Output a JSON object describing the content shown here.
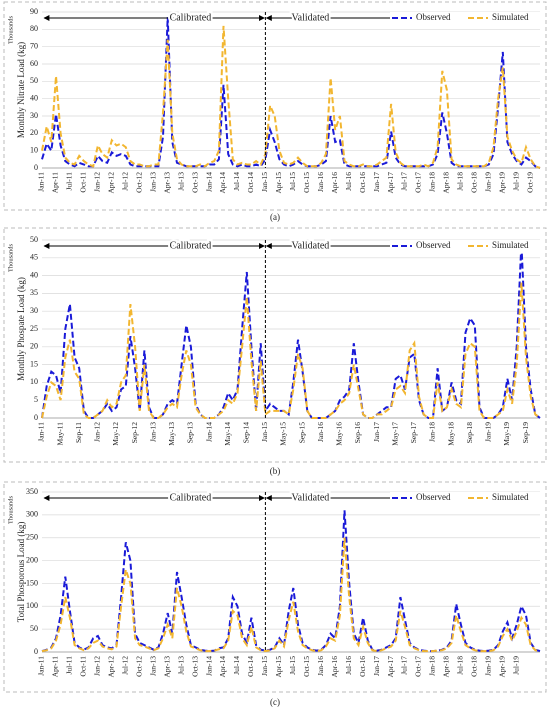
{
  "chart_data": [
    {
      "type": "line",
      "caption": "(a)",
      "y_label": "Monthly  Nitrate Load (kg)",
      "y_unit": "Thousands",
      "annotations": [
        "Calibrated",
        "Validated"
      ],
      "divider": "Jan-15",
      "grid": true,
      "legend": "top-right",
      "ylim": [
        0,
        90
      ],
      "yticks": [
        0,
        10,
        20,
        30,
        40,
        50,
        60,
        70,
        80,
        90
      ],
      "categories": [
        "Jan-11",
        null,
        null,
        "Apr-11",
        null,
        null,
        "Jul-11",
        null,
        null,
        "Oct-11",
        null,
        null,
        "Jan-12",
        null,
        null,
        "Apr-12",
        null,
        null,
        "Jul-12",
        null,
        null,
        "Oct-12",
        null,
        null,
        "Jan-13",
        null,
        null,
        "Apr-13",
        null,
        null,
        "Jul-13",
        null,
        null,
        "Oct-13",
        null,
        null,
        "Jan-14",
        null,
        null,
        "Apr-14",
        null,
        null,
        "Jul-14",
        null,
        null,
        "Oct-14",
        null,
        null,
        "Jan-15",
        null,
        null,
        "Apr-15",
        null,
        null,
        "Jul-15",
        null,
        null,
        "Oct-15",
        null,
        null,
        "Jan-16",
        null,
        null,
        "Apr-16",
        null,
        null,
        "Jul-16",
        null,
        null,
        "Oct-16",
        null,
        null,
        "Jan-17",
        null,
        null,
        "Apr-17",
        null,
        null,
        "Jul-17",
        null,
        null,
        "Oct-17",
        null,
        null,
        "Jan-18",
        null,
        null,
        "Apr-18",
        null,
        null,
        "Jul-18",
        null,
        null,
        "Oct-18",
        null,
        null,
        "Jan-19",
        null,
        null,
        "Apr-19",
        null,
        null,
        "Jul-19",
        null,
        null,
        "Oct-19",
        null,
        null
      ],
      "series": [
        {
          "name": "Observed",
          "color": "#1a1ad8",
          "values": [
            5,
            14,
            10,
            31,
            13,
            4,
            2,
            1,
            3,
            2,
            1,
            1,
            7,
            4,
            3,
            9,
            7,
            8,
            7,
            2,
            1,
            1,
            1,
            1,
            1,
            1,
            18,
            87,
            15,
            3,
            2,
            1,
            1,
            1,
            1,
            1,
            2,
            2,
            5,
            48,
            8,
            2,
            1,
            2,
            1,
            1,
            2,
            1,
            5,
            22,
            15,
            5,
            2,
            1,
            2,
            4,
            2,
            1,
            1,
            1,
            2,
            4,
            30,
            15,
            16,
            2,
            1,
            1,
            1,
            1,
            1,
            1,
            1,
            2,
            3,
            21,
            6,
            2,
            1,
            1,
            1,
            1,
            1,
            1,
            2,
            8,
            32,
            20,
            3,
            1,
            1,
            1,
            1,
            1,
            1,
            1,
            2,
            8,
            35,
            67,
            15,
            8,
            4,
            2,
            6,
            4,
            1,
            0
          ]
        },
        {
          "name": "Simulated",
          "color": "#f2b630",
          "values": [
            10,
            24,
            15,
            53,
            20,
            6,
            3,
            2,
            7,
            4,
            2,
            1,
            13,
            8,
            6,
            16,
            13,
            14,
            12,
            4,
            2,
            2,
            1,
            1,
            2,
            2,
            32,
            74,
            20,
            5,
            2,
            1,
            1,
            1,
            2,
            1,
            3,
            4,
            10,
            82,
            40,
            5,
            2,
            3,
            2,
            2,
            4,
            2,
            8,
            36,
            30,
            10,
            3,
            2,
            3,
            6,
            3,
            1,
            1,
            1,
            3,
            8,
            52,
            22,
            30,
            4,
            2,
            1,
            1,
            2,
            1,
            1,
            2,
            4,
            6,
            37,
            9,
            3,
            1,
            1,
            1,
            1,
            2,
            1,
            3,
            12,
            56,
            45,
            5,
            2,
            1,
            1,
            1,
            1,
            1,
            1,
            3,
            12,
            40,
            58,
            18,
            10,
            5,
            3,
            12,
            5,
            1,
            0
          ]
        }
      ]
    },
    {
      "type": "line",
      "caption": "(b)",
      "y_label": "Monthly Phospate Load (kg)",
      "y_unit": "Thousands",
      "annotations": [
        "Calibrated",
        "Validated"
      ],
      "divider": "Jan-15",
      "grid": true,
      "legend": "top-right",
      "ylim": [
        0,
        50
      ],
      "yticks": [
        0,
        5,
        10,
        15,
        20,
        25,
        30,
        35,
        40,
        45,
        50
      ],
      "categories": [
        "Jan-11",
        null,
        null,
        null,
        "May-11",
        null,
        null,
        null,
        "Sep-11",
        null,
        null,
        null,
        "Jan-12",
        null,
        null,
        null,
        "May-12",
        null,
        null,
        null,
        "Sep-12",
        null,
        null,
        null,
        "Jan-13",
        null,
        null,
        null,
        "May-13",
        null,
        null,
        null,
        "Sep-13",
        null,
        null,
        null,
        "Jan-14",
        null,
        null,
        null,
        "May-14",
        null,
        null,
        null,
        "Sep-14",
        null,
        null,
        null,
        "Jan-15",
        null,
        null,
        null,
        "May-15",
        null,
        null,
        null,
        "Sep-15",
        null,
        null,
        null,
        "Jan-16",
        null,
        null,
        null,
        "May-16",
        null,
        null,
        null,
        "Sep-16",
        null,
        null,
        null,
        "Jan-17",
        null,
        null,
        null,
        "May-17",
        null,
        null,
        null,
        "Sep-17",
        null,
        null,
        null,
        "Jan-18",
        null,
        null,
        null,
        "May-18",
        null,
        null,
        null,
        "Sep-18",
        null,
        null,
        null,
        "Jan-19",
        null,
        null,
        null,
        "May-19",
        null,
        null,
        null,
        "Sep-19",
        null,
        null,
        null
      ],
      "series": [
        {
          "name": "Observed",
          "color": "#1a1ad8",
          "values": [
            0,
            9,
            13,
            12,
            7,
            25,
            32,
            17,
            14,
            2,
            0,
            0,
            1,
            2,
            4,
            2,
            3,
            8,
            9,
            23,
            14,
            2,
            19,
            3,
            0,
            0,
            1,
            4,
            5,
            4,
            15,
            26,
            20,
            4,
            1,
            0,
            0,
            0,
            1,
            3,
            7,
            5,
            8,
            25,
            41,
            20,
            2,
            21,
            2,
            4,
            3,
            2,
            2,
            1,
            10,
            22,
            13,
            2,
            0,
            0,
            0,
            0,
            1,
            2,
            5,
            6,
            8,
            21,
            10,
            1,
            0,
            0,
            1,
            2,
            3,
            3,
            11,
            12,
            8,
            17,
            18,
            5,
            1,
            0,
            0,
            14,
            2,
            3,
            10,
            5,
            4,
            24,
            28,
            26,
            3,
            0,
            0,
            0,
            1,
            3,
            11,
            5,
            20,
            49,
            20,
            8,
            1,
            0
          ]
        },
        {
          "name": "Simulated",
          "color": "#f2b630",
          "values": [
            0,
            6,
            10,
            9,
            5,
            17,
            22,
            13,
            11,
            1,
            0,
            0,
            1,
            2,
            5,
            3,
            4,
            10,
            12,
            32,
            20,
            2,
            15,
            2,
            0,
            0,
            1,
            3,
            4,
            3,
            12,
            19,
            15,
            3,
            1,
            0,
            0,
            0,
            1,
            2,
            5,
            4,
            7,
            20,
            34,
            16,
            2,
            16,
            1,
            2,
            2,
            2,
            2,
            1,
            8,
            18,
            14,
            2,
            0,
            0,
            0,
            0,
            1,
            2,
            4,
            5,
            7,
            15,
            8,
            1,
            0,
            0,
            1,
            1,
            2,
            3,
            8,
            9,
            7,
            19,
            21,
            6,
            1,
            0,
            0,
            10,
            2,
            3,
            8,
            4,
            3,
            18,
            21,
            20,
            2,
            0,
            0,
            0,
            1,
            2,
            8,
            4,
            15,
            38,
            17,
            6,
            1,
            0
          ]
        }
      ]
    },
    {
      "type": "line",
      "caption": "(c)",
      "y_label": "Total Phosporous Load (kg)",
      "y_unit": "Thousands",
      "annotations": [
        "Calibrated",
        "Validated"
      ],
      "divider": "Jan-15",
      "grid": true,
      "legend": "top-right",
      "ylim": [
        0,
        350
      ],
      "yticks": [
        0,
        50,
        100,
        150,
        200,
        250,
        300,
        350
      ],
      "categories": [
        "Jan-11",
        null,
        null,
        "Apr-11",
        null,
        null,
        "Jul-11",
        null,
        null,
        "Oct-11",
        null,
        null,
        "Jan-12",
        null,
        null,
        "Apr-12",
        null,
        null,
        "Jul-12",
        null,
        null,
        "Oct-12",
        null,
        null,
        "Jan-13",
        null,
        null,
        "Apr-13",
        null,
        null,
        "Jul-13",
        null,
        null,
        "Oct-13",
        null,
        null,
        "Jan-14",
        null,
        null,
        "Apr-14",
        null,
        null,
        "Jul-14",
        null,
        null,
        "Oct-14",
        null,
        null,
        "Jan-15",
        null,
        null,
        "Apr-15",
        null,
        null,
        "Jul-15",
        null,
        null,
        "Oct-15",
        null,
        null,
        "Jan-16",
        null,
        null,
        "Apr-16",
        null,
        null,
        "Jul-16",
        null,
        null,
        "Oct-16",
        null,
        null,
        "Jan-17",
        null,
        null,
        "Apr-17",
        null,
        null,
        "Jul-17",
        null,
        null,
        "Oct-17",
        null,
        null,
        "Jan-18",
        null,
        null,
        "Apr-18",
        null,
        null,
        "Jul-18",
        null,
        null,
        "Oct-18",
        null,
        null,
        "Jan-19",
        null,
        null,
        "Apr-19",
        null,
        null,
        "Jul-19",
        null,
        null,
        null,
        null,
        null
      ],
      "series": [
        {
          "name": "Observed",
          "color": "#1a1ad8",
          "values": [
            2,
            5,
            10,
            30,
            80,
            165,
            90,
            20,
            10,
            5,
            10,
            30,
            35,
            15,
            10,
            8,
            15,
            120,
            240,
            200,
            40,
            20,
            15,
            10,
            5,
            10,
            40,
            85,
            40,
            175,
            120,
            60,
            15,
            10,
            5,
            3,
            2,
            3,
            8,
            10,
            30,
            120,
            100,
            40,
            20,
            75,
            15,
            5,
            3,
            5,
            10,
            30,
            15,
            90,
            140,
            60,
            20,
            10,
            5,
            3,
            5,
            15,
            40,
            30,
            100,
            310,
            150,
            40,
            20,
            75,
            25,
            5,
            3,
            5,
            10,
            15,
            30,
            120,
            70,
            20,
            10,
            5,
            3,
            2,
            2,
            3,
            5,
            10,
            25,
            105,
            60,
            20,
            10,
            5,
            3,
            2,
            3,
            5,
            15,
            45,
            65,
            30,
            60,
            100,
            80,
            20,
            5,
            2
          ]
        },
        {
          "name": "Simulated",
          "color": "#f2b630",
          "values": [
            2,
            4,
            8,
            25,
            60,
            120,
            75,
            15,
            8,
            4,
            8,
            20,
            25,
            12,
            8,
            6,
            12,
            100,
            180,
            150,
            30,
            15,
            12,
            8,
            4,
            8,
            30,
            60,
            30,
            140,
            100,
            45,
            12,
            8,
            4,
            2,
            2,
            3,
            6,
            8,
            25,
            90,
            80,
            30,
            15,
            55,
            10,
            4,
            2,
            4,
            8,
            25,
            12,
            70,
            110,
            45,
            15,
            8,
            4,
            2,
            4,
            12,
            30,
            25,
            80,
            250,
            120,
            30,
            15,
            55,
            20,
            4,
            2,
            4,
            8,
            12,
            25,
            90,
            55,
            15,
            8,
            4,
            2,
            2,
            2,
            3,
            4,
            8,
            20,
            80,
            45,
            15,
            8,
            4,
            2,
            2,
            2,
            4,
            12,
            35,
            50,
            25,
            45,
            75,
            60,
            15,
            4,
            2
          ]
        }
      ]
    }
  ]
}
